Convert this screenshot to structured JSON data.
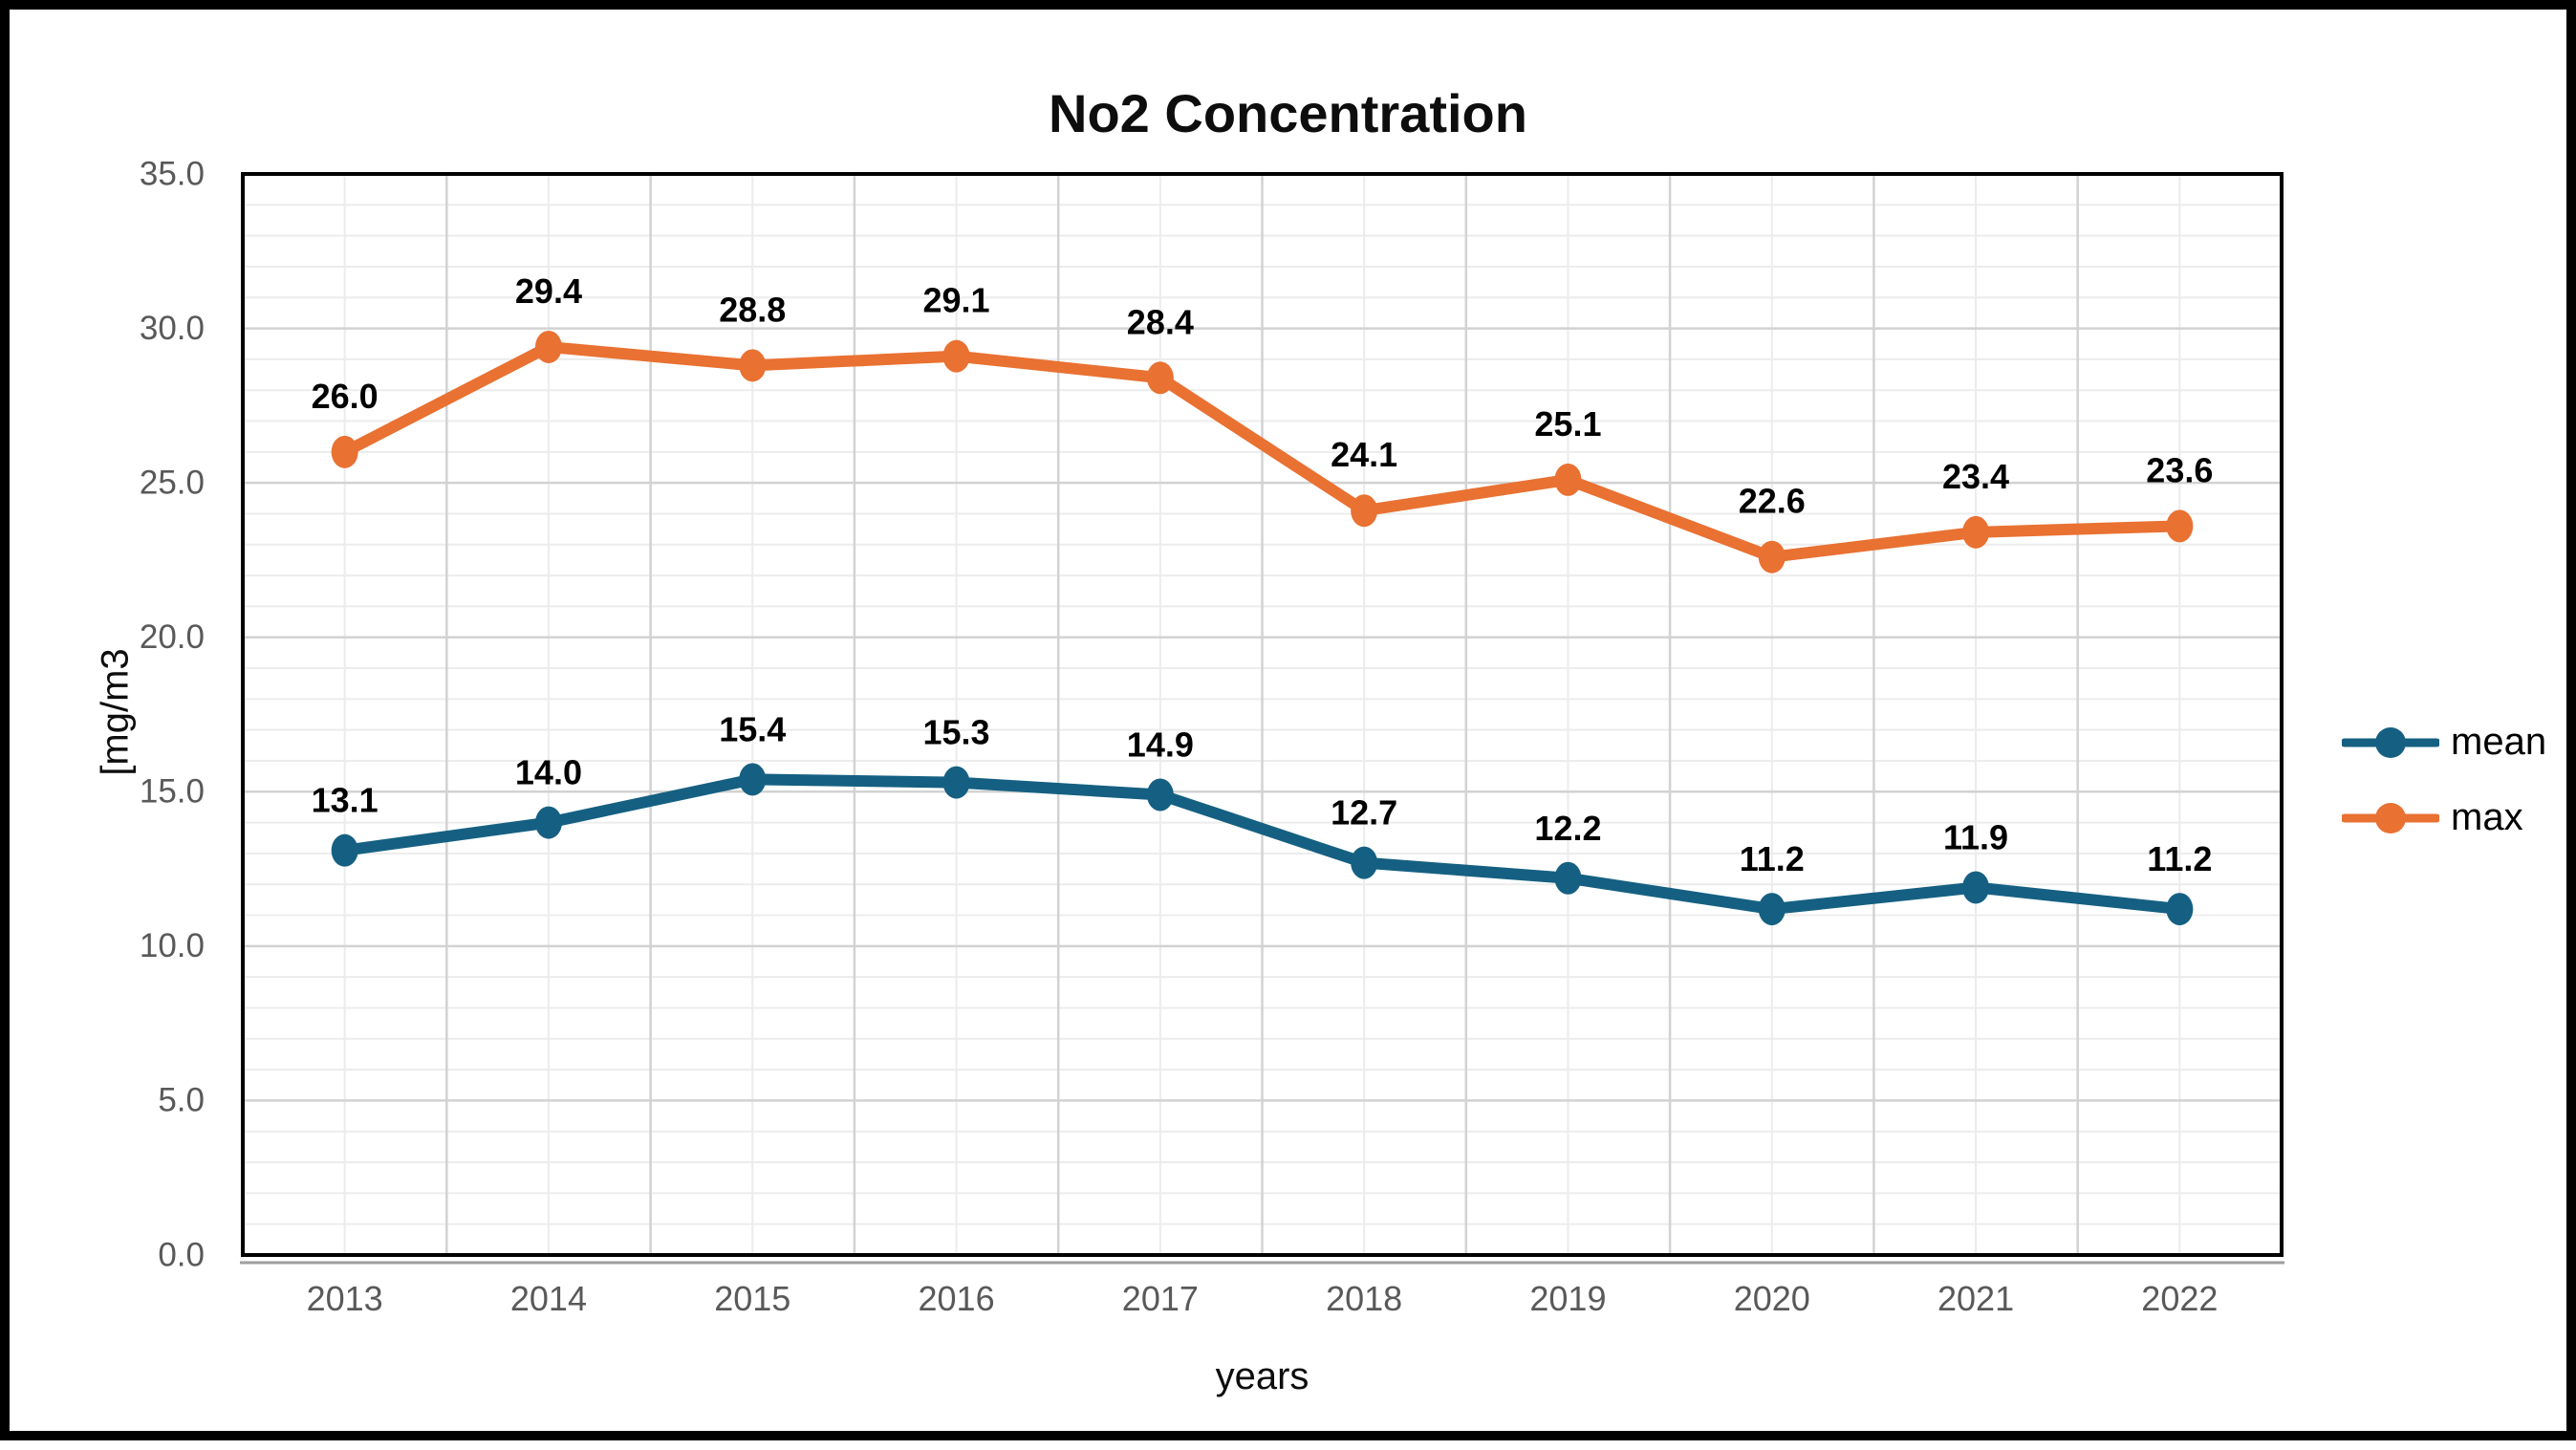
{
  "chart_data": {
    "type": "line",
    "title": "No2 Concentration",
    "xlabel": "years",
    "ylabel": "[mg/m3",
    "categories": [
      "2013",
      "2014",
      "2015",
      "2016",
      "2017",
      "2018",
      "2019",
      "2020",
      "2021",
      "2022"
    ],
    "series": [
      {
        "name": "mean",
        "color": "#156082",
        "values": [
          13.1,
          14.0,
          15.4,
          15.3,
          14.9,
          12.7,
          12.2,
          11.2,
          11.9,
          11.2
        ]
      },
      {
        "name": "max",
        "color": "#E97132",
        "values": [
          26.0,
          29.4,
          28.8,
          29.1,
          28.4,
          24.1,
          25.1,
          22.6,
          23.4,
          23.6
        ]
      }
    ],
    "y_ticks": [
      "0.0",
      "5.0",
      "10.0",
      "15.0",
      "20.0",
      "25.0",
      "30.0",
      "35.0"
    ],
    "ylim": [
      0,
      35
    ],
    "y_major_step": 5,
    "y_minor_step": 1,
    "grid": true,
    "legend_position": "right",
    "data_labels": true,
    "colors": {
      "tick_label": "#595959",
      "data_label": "#000000",
      "grid_major": "#d2d2d2",
      "grid_minor": "#ececec",
      "plot_border": "#000000",
      "axis_accent": "#9e9e9e"
    }
  }
}
